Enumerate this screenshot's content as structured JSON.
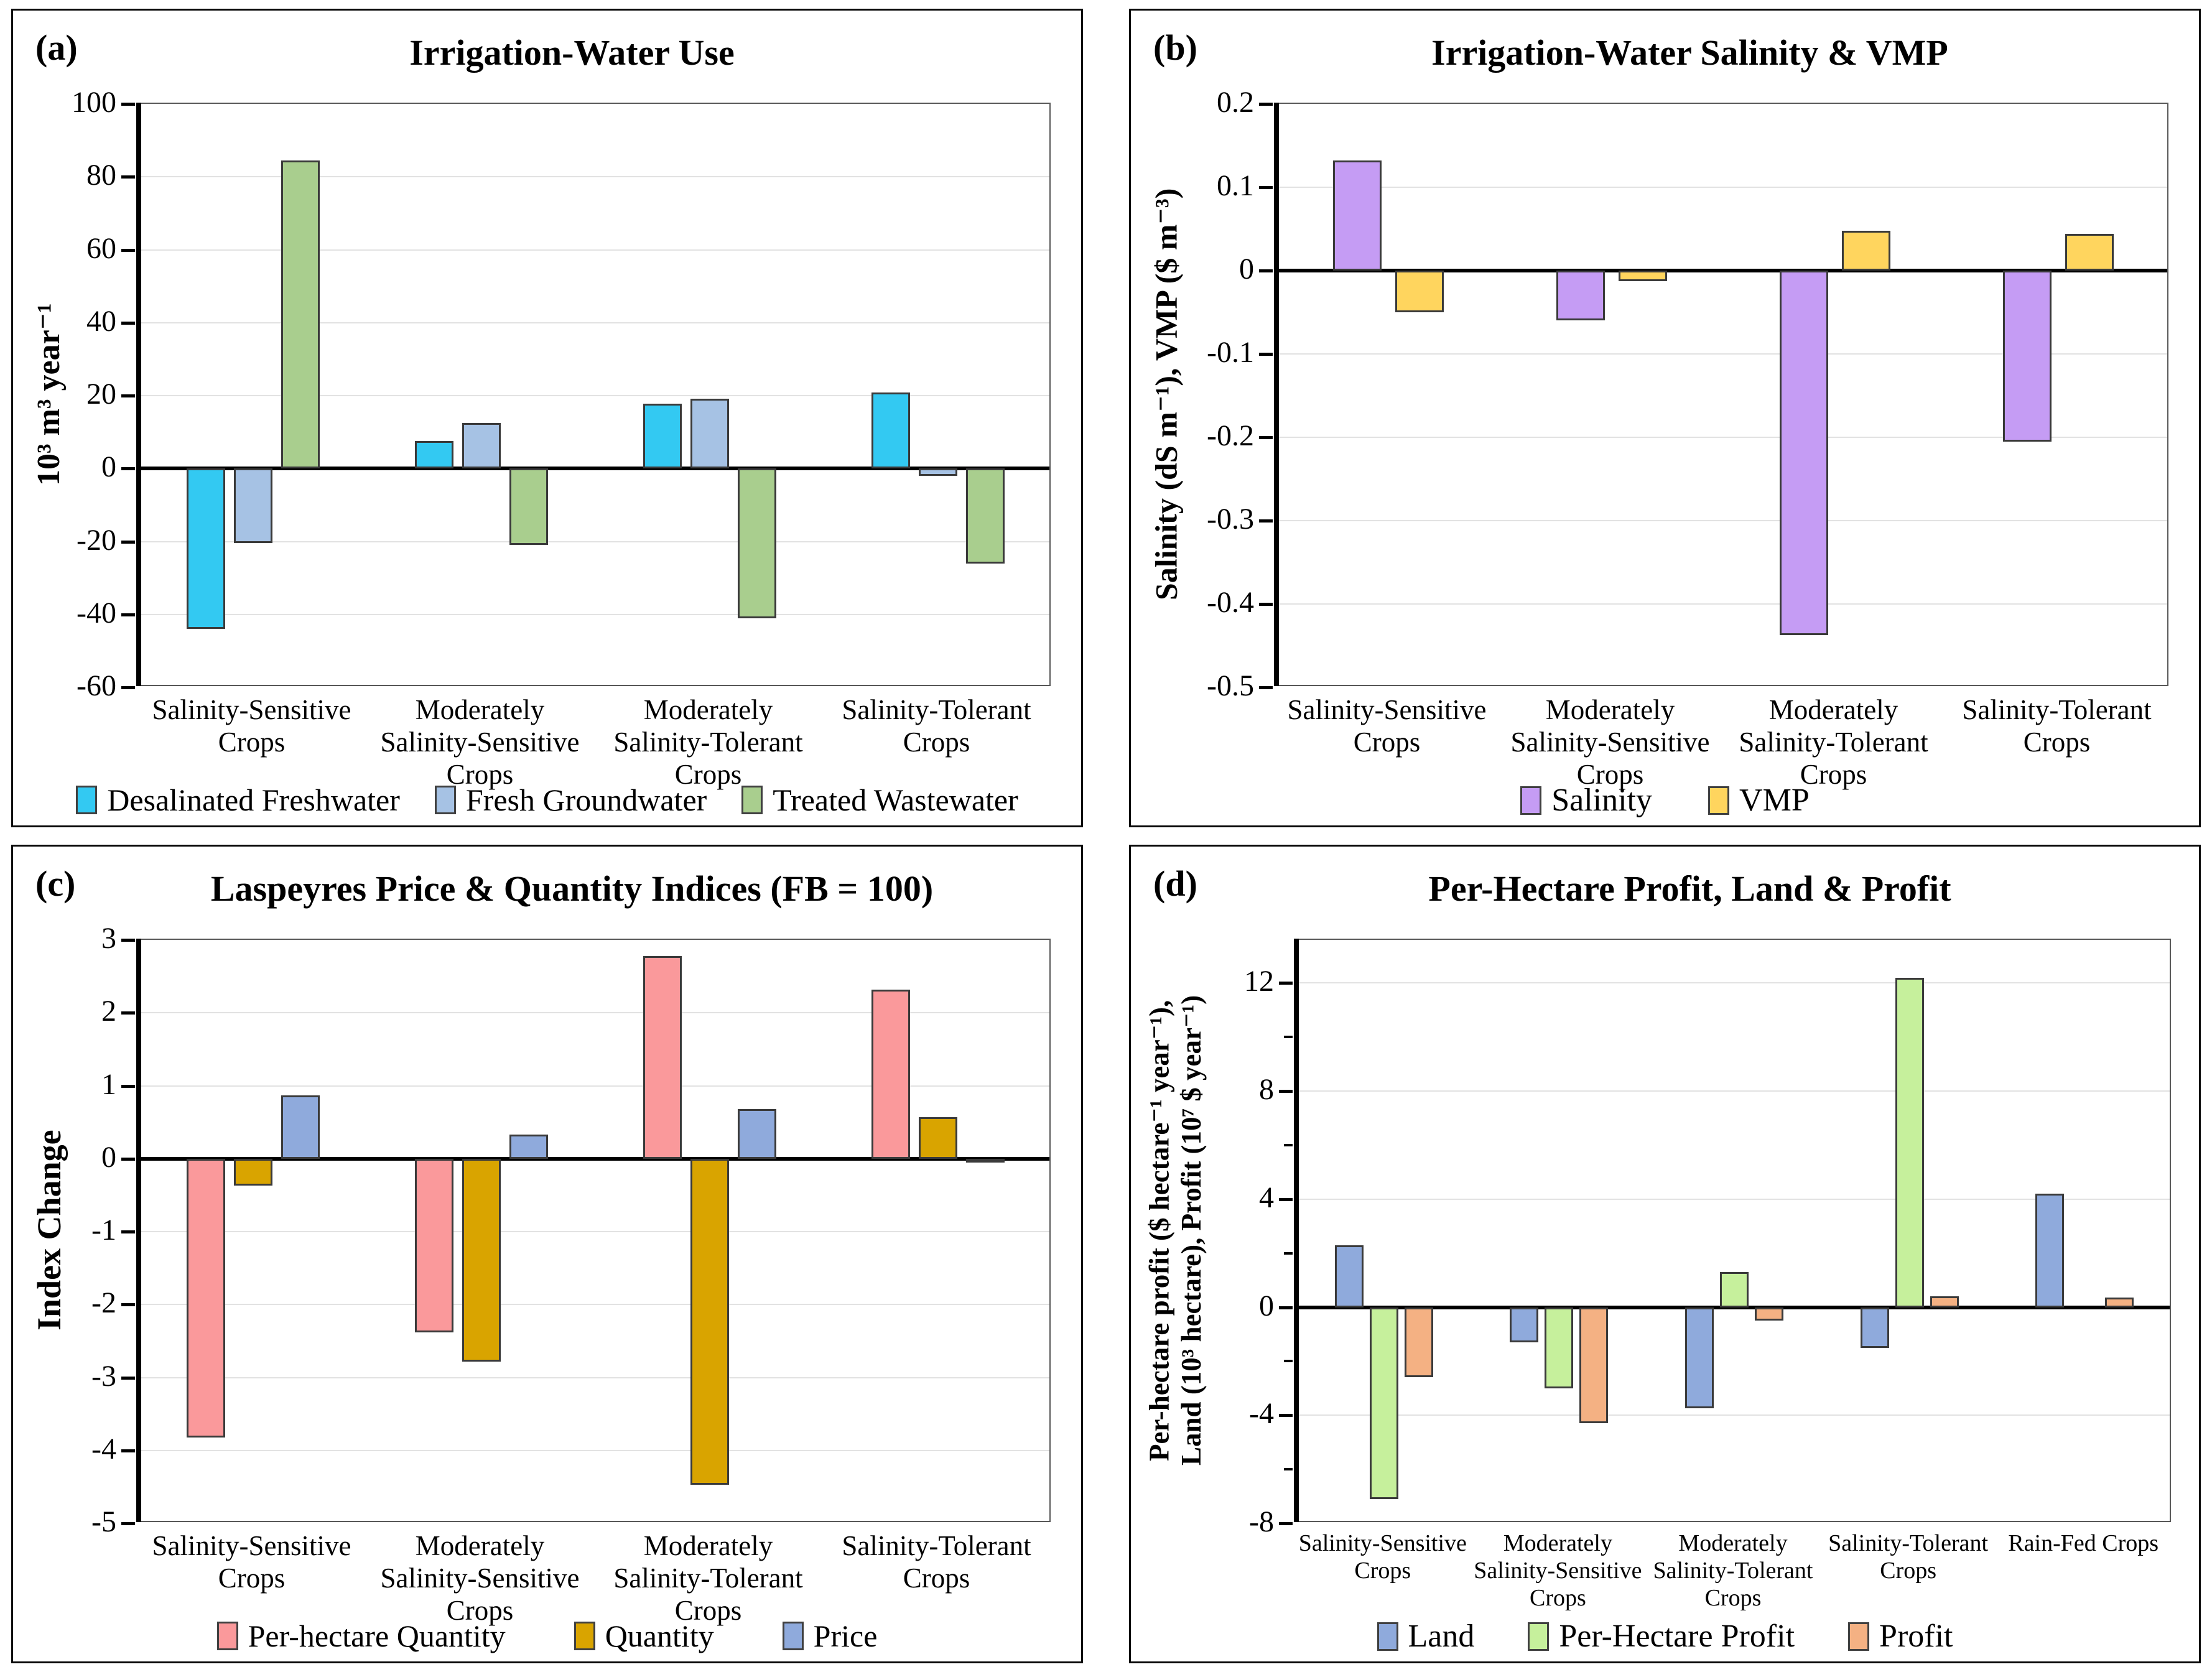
{
  "figure": {
    "background": "#ffffff",
    "grid_color": "#e2e2e2",
    "axis_color": "#000000",
    "plot_border_color": "#595959"
  },
  "chart_data": [
    {
      "type": "bar",
      "letter": "(a)",
      "title": "Irrigation-Water Use",
      "ylabel": "10³ m³ year⁻¹",
      "ymax": 100,
      "ymin": -60,
      "yticks": [
        100,
        80,
        60,
        40,
        20,
        0,
        -20,
        -40,
        -60
      ],
      "grid": true,
      "legend_position": "bottom",
      "categories": [
        "Salinity-Sensitive\nCrops",
        "Moderately\nSalinity-Sensitive\nCrops",
        "Moderately\nSalinity-Tolerant\nCrops",
        "Salinity-Tolerant\nCrops"
      ],
      "series": [
        {
          "name": "Desalinated Freshwater",
          "color": "#33C9F2",
          "values": [
            -44,
            7.5,
            17.8,
            20.8
          ]
        },
        {
          "name": "Fresh Groundwater",
          "color": "#A6C2E4",
          "values": [
            -20.5,
            12.5,
            19.2,
            -2
          ]
        },
        {
          "name": "Treated Wastewater",
          "color": "#A9CE8E",
          "values": [
            84.5,
            -21,
            -41,
            -26
          ]
        }
      ]
    },
    {
      "type": "bar",
      "letter": "(b)",
      "title": "Irrigation-Water Salinity & VMP",
      "ylabel": "Salinity (dS m⁻¹), VMP ($ m⁻³)",
      "ymax": 0.2,
      "ymin": -0.5,
      "yticks": [
        0.2,
        0.1,
        0,
        -0.1,
        -0.2,
        -0.3,
        -0.4,
        -0.5
      ],
      "grid": true,
      "legend_position": "bottom",
      "categories": [
        "Salinity-Sensitive\nCrops",
        "Moderately\nSalinity-Sensitive\nCrops",
        "Moderately\nSalinity-Tolerant\nCrops",
        "Salinity-Tolerant\nCrops"
      ],
      "series": [
        {
          "name": "Salinity",
          "color": "#C59CF4",
          "values": [
            0.132,
            -0.06,
            -0.437,
            -0.205
          ]
        },
        {
          "name": "VMP",
          "color": "#FFD55E",
          "values": [
            -0.05,
            -0.013,
            0.048,
            0.044
          ]
        }
      ]
    },
    {
      "type": "bar",
      "letter": "(c)",
      "title": "Laspeyres Price & Quantity Indices (FB = 100)",
      "ylabel": "Index Change",
      "ymax": 3,
      "ymin": -5,
      "yticks": [
        3,
        2,
        1,
        0,
        -1,
        -2,
        -3,
        -4,
        -5
      ],
      "grid": true,
      "legend_position": "bottom",
      "categories": [
        "Salinity-Sensitive\nCrops",
        "Moderately\nSalinity-Sensitive\nCrops",
        "Moderately\nSalinity-Tolerant\nCrops",
        "Salinity-Tolerant\nCrops"
      ],
      "series": [
        {
          "name": "Per-hectare Quantity",
          "color": "#FA999B",
          "values": [
            -3.82,
            -2.38,
            2.78,
            2.32
          ]
        },
        {
          "name": "Quantity",
          "color": "#D9A400",
          "values": [
            -0.37,
            -2.78,
            -4.47,
            0.57
          ]
        },
        {
          "name": "Price",
          "color": "#8FAADC",
          "values": [
            0.87,
            0.33,
            0.68,
            -0.05
          ]
        }
      ]
    },
    {
      "type": "bar",
      "letter": "(d)",
      "title": "Per-Hectare Profit, Land & Profit",
      "ylabel": "Per-hectare profit ($ hectare⁻¹ year⁻¹),\nLand (10³ hectare), Profit (10⁷ $ year⁻¹)",
      "ymax": 13.6,
      "ymin": -8,
      "yticks": [
        12,
        8,
        4,
        0,
        -4,
        -8
      ],
      "minor_ticks": [
        10,
        6,
        2,
        -2,
        -6
      ],
      "grid": true,
      "legend_position": "bottom",
      "categories": [
        "Salinity-Sensitive\nCrops",
        "Moderately\nSalinity-Sensitive\nCrops",
        "Moderately\nSalinity-Tolerant\nCrops",
        "Salinity-Tolerant\nCrops",
        "Rain-Fed Crops"
      ],
      "series": [
        {
          "name": "Land",
          "color": "#8FAADC",
          "values": [
            2.3,
            -1.3,
            -3.75,
            -1.5,
            4.2
          ]
        },
        {
          "name": "Per-Hectare Profit",
          "color": "#C6F09C",
          "values": [
            -7.1,
            -3.0,
            1.3,
            12.2,
            null
          ]
        },
        {
          "name": "Profit",
          "color": "#F4B183",
          "values": [
            -2.6,
            -4.3,
            -0.5,
            0.4,
            0.35
          ]
        }
      ]
    }
  ]
}
